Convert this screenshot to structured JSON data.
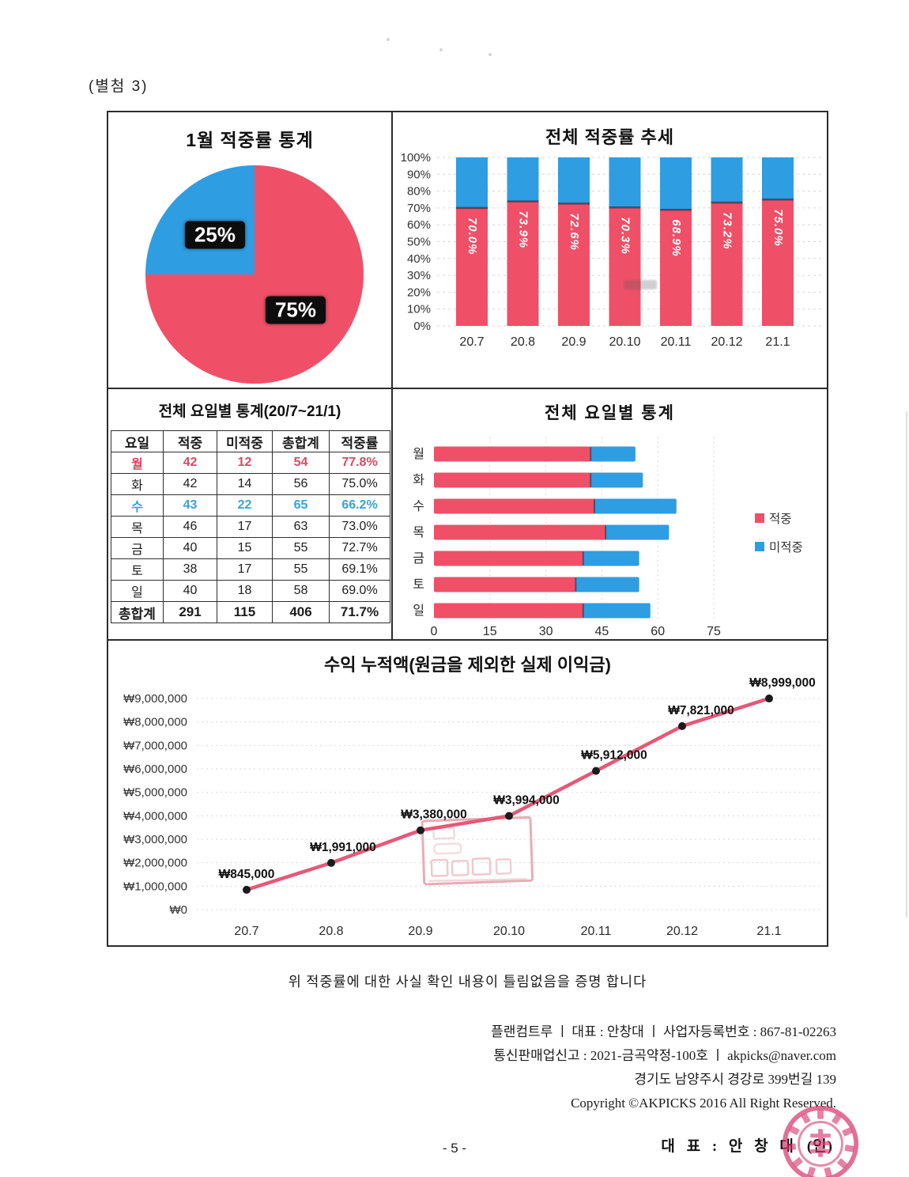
{
  "page": {
    "annex_label": "(별첨 3)",
    "certification_line": "위 적중률에 대한 사실 확인 내용이 틀림없음을 증명 합니다",
    "footer_lines": [
      "플랜컴트루 ㅣ 대표 : 안창대 ㅣ 사업자등록번호 : 867-81-02263",
      "통신판매업신고 : 2021-금곡약정-100호 ㅣ akpicks@naver.com",
      "경기도 남양주시 경강로 399번길 139",
      "Copyright ©AKPICKS 2016 All Right Reserved."
    ],
    "representative_label": "대 표 : 안 창 대",
    "seal_mark": "(인)",
    "page_number": "- 5 -"
  },
  "colors": {
    "hit": "#ef5068",
    "miss": "#2f9de2",
    "line": "#e65877",
    "marker": "#1b1b1b",
    "label_box": "#0d0d0d",
    "table_red": "#d84a63",
    "table_blue": "#35a2e0",
    "stamp": "#d6356b",
    "watermark": "#dd7f8d"
  },
  "table": {
    "title": "전체 요일별 통계(20/7~21/1)",
    "headers": [
      "요일",
      "적중",
      "미적중",
      "총합계",
      "적중률"
    ],
    "rows": [
      {
        "cells": [
          "월",
          "42",
          "12",
          "54",
          "77.8%"
        ],
        "style": "red"
      },
      {
        "cells": [
          "화",
          "42",
          "14",
          "56",
          "75.0%"
        ],
        "style": ""
      },
      {
        "cells": [
          "수",
          "43",
          "22",
          "65",
          "66.2%"
        ],
        "style": "blue"
      },
      {
        "cells": [
          "목",
          "46",
          "17",
          "63",
          "73.0%"
        ],
        "style": ""
      },
      {
        "cells": [
          "금",
          "40",
          "15",
          "55",
          "72.7%"
        ],
        "style": ""
      },
      {
        "cells": [
          "토",
          "38",
          "17",
          "55",
          "69.1%"
        ],
        "style": ""
      },
      {
        "cells": [
          "일",
          "40",
          "18",
          "58",
          "69.0%"
        ],
        "style": ""
      },
      {
        "cells": [
          "총합계",
          "291",
          "115",
          "406",
          "71.7%"
        ],
        "style": "total"
      }
    ]
  },
  "chart_data": [
    {
      "id": "january-pie",
      "type": "pie",
      "title": "1월 적중률 통계",
      "slices": [
        {
          "label": "75%",
          "value": 75,
          "color_key": "hit"
        },
        {
          "label": "25%",
          "value": 25,
          "color_key": "miss"
        }
      ]
    },
    {
      "id": "overall-trend",
      "type": "bar",
      "title": "전체 적중률 추세",
      "stacked": true,
      "categories": [
        "20.7",
        "20.8",
        "20.9",
        "20.10",
        "20.11",
        "20.12",
        "21.1"
      ],
      "series": [
        {
          "name": "적중",
          "values": [
            70.0,
            73.9,
            72.6,
            70.3,
            68.9,
            73.2,
            75.0
          ],
          "labels": [
            "70.0%",
            "73.9%",
            "72.6%",
            "70.3%",
            "68.9%",
            "73.2%",
            "75.0%"
          ]
        },
        {
          "name": "미적중",
          "values": [
            30.0,
            26.1,
            27.4,
            29.7,
            31.1,
            26.8,
            25.0
          ]
        }
      ],
      "ylim": [
        0,
        100
      ],
      "ytick_step": 10,
      "ytick_suffix": "%",
      "grid": true
    },
    {
      "id": "weekday-stats",
      "type": "bar-horizontal",
      "title": "전체 요일별 통계",
      "stacked": true,
      "categories": [
        "월",
        "화",
        "수",
        "목",
        "금",
        "토",
        "일"
      ],
      "series": [
        {
          "name": "적중",
          "values": [
            42,
            42,
            43,
            46,
            40,
            38,
            40
          ]
        },
        {
          "name": "미적중",
          "values": [
            12,
            14,
            22,
            17,
            15,
            17,
            18
          ]
        }
      ],
      "xlim": [
        0,
        90
      ],
      "xticks": [
        0,
        15,
        30,
        45,
        60,
        75
      ],
      "legend_position": "right",
      "grid": true
    },
    {
      "id": "profit-line",
      "type": "line",
      "title": "수익 누적액(원금을 제외한 실제 이익금)",
      "x": [
        "20.7",
        "20.8",
        "20.9",
        "20.10",
        "20.11",
        "20.12",
        "21.1"
      ],
      "values": [
        845000,
        1991000,
        3380000,
        3994000,
        5912000,
        7821000,
        8999000
      ],
      "point_labels": [
        "₩845,000",
        "₩1,991,000",
        "₩3,380,000",
        "₩3,994,000",
        "₩5,912,000",
        "₩7,821,000",
        "₩8,999,000"
      ],
      "ylim": [
        0,
        9000000
      ],
      "ytick_step": 1000000,
      "ytick_labels": [
        "₩0",
        "₩1,000,000",
        "₩2,000,000",
        "₩3,000,000",
        "₩4,000,000",
        "₩5,000,000",
        "₩6,000,000",
        "₩7,000,000",
        "₩8,000,000",
        "₩9,000,000"
      ],
      "grid": true
    }
  ]
}
